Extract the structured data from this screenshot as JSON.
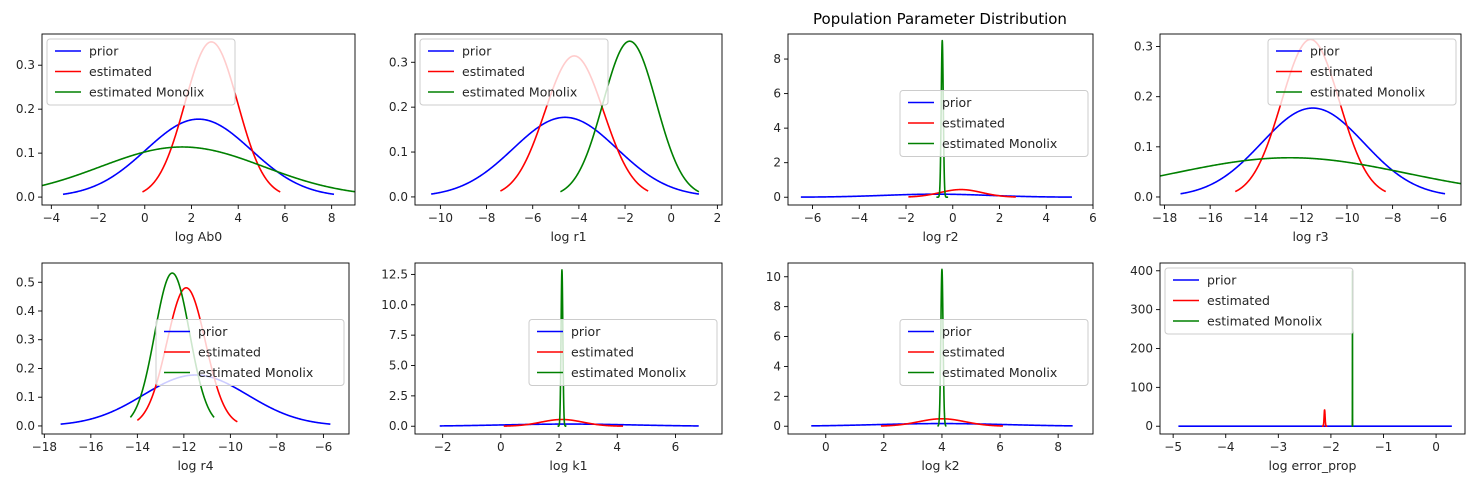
{
  "figure": {
    "title": "Population Parameter Distribution"
  },
  "colors": {
    "prior": "#0000ff",
    "estimated": "#ff0000",
    "monolix": "#008000"
  },
  "chart_data": [
    {
      "type": "line",
      "xlabel": "log Ab0",
      "xlim": [
        -4.4,
        9.0
      ],
      "ylim": [
        -0.018,
        0.371
      ],
      "xticks": [
        -4,
        -2,
        0,
        2,
        4,
        6,
        8
      ],
      "yticks": [
        0.0,
        0.1,
        0.2,
        0.3
      ],
      "ytick_labels": [
        "0.0",
        "0.1",
        "0.2",
        "0.3"
      ],
      "legend": "upper-left",
      "series": [
        {
          "name": "prior",
          "mu": 2.3,
          "sigma": 2.25,
          "x_range": [
            -3.5,
            8.1
          ]
        },
        {
          "name": "estimated",
          "mu": 2.85,
          "sigma": 1.13,
          "x_range": [
            -0.1,
            5.8
          ]
        },
        {
          "name": "estimated Monolix",
          "mu": 1.6,
          "sigma": 3.5,
          "x_range": [
            -4.4,
            9.0
          ]
        }
      ]
    },
    {
      "type": "line",
      "xlabel": "log r1",
      "xlim": [
        -11.1,
        2.2
      ],
      "ylim": [
        -0.018,
        0.363
      ],
      "xticks": [
        -10,
        -8,
        -6,
        -4,
        -2,
        0,
        2
      ],
      "yticks": [
        0.0,
        0.1,
        0.2,
        0.3
      ],
      "ytick_labels": [
        "0.0",
        "0.1",
        "0.2",
        "0.3"
      ],
      "legend": "upper-left",
      "series": [
        {
          "name": "prior",
          "mu": -4.6,
          "sigma": 2.25,
          "x_range": [
            -10.4,
            1.2
          ]
        },
        {
          "name": "estimated",
          "mu": -4.2,
          "sigma": 1.27,
          "x_range": [
            -7.4,
            -1.0
          ]
        },
        {
          "name": "estimated Monolix",
          "mu": -1.8,
          "sigma": 1.15,
          "x_range": [
            -4.8,
            1.2
          ]
        }
      ]
    },
    {
      "type": "line",
      "xlabel": "log r2",
      "xlim": [
        -7.05,
        6.0
      ],
      "ylim": [
        -0.45,
        9.45
      ],
      "xticks": [
        -6,
        -4,
        -2,
        0,
        2,
        4,
        6
      ],
      "yticks": [
        0,
        2,
        4,
        6,
        8
      ],
      "ytick_labels": [
        "0",
        "2",
        "4",
        "6",
        "8"
      ],
      "legend": "center-right",
      "series": [
        {
          "name": "prior",
          "mu": -0.7,
          "sigma": 2.25,
          "x_range": [
            -6.5,
            5.1
          ]
        },
        {
          "name": "estimated",
          "mu": 0.35,
          "sigma": 0.9,
          "x_range": [
            -1.9,
            2.7
          ]
        },
        {
          "name": "estimated Monolix",
          "mu": -0.45,
          "sigma": 0.044,
          "x_range": [
            -0.7,
            -0.2
          ]
        }
      ]
    },
    {
      "type": "line",
      "xlabel": "log r3",
      "xlim": [
        -18.2,
        -5.0
      ],
      "ylim": [
        -0.016,
        0.325
      ],
      "xticks": [
        -18,
        -16,
        -14,
        -12,
        -10,
        -8,
        -6
      ],
      "yticks": [
        0.0,
        0.1,
        0.2,
        0.3
      ],
      "ytick_labels": [
        "0.0",
        "0.1",
        "0.2",
        "0.3"
      ],
      "legend": "upper-right",
      "series": [
        {
          "name": "prior",
          "mu": -11.5,
          "sigma": 2.25,
          "x_range": [
            -17.3,
            -5.7
          ]
        },
        {
          "name": "estimated",
          "mu": -11.6,
          "sigma": 1.27,
          "x_range": [
            -14.9,
            -8.3
          ]
        },
        {
          "name": "estimated Monolix",
          "mu": -12.5,
          "sigma": 5.1,
          "x_range": [
            -18.2,
            -5.0
          ]
        }
      ]
    },
    {
      "type": "line",
      "xlabel": "log r4",
      "xlim": [
        -18.1,
        -4.9
      ],
      "ylim": [
        -0.028,
        0.567
      ],
      "xticks": [
        -18,
        -16,
        -14,
        -12,
        -10,
        -8,
        -6
      ],
      "yticks": [
        0.0,
        0.1,
        0.2,
        0.3,
        0.4,
        0.5
      ],
      "ytick_labels": [
        "0.0",
        "0.1",
        "0.2",
        "0.3",
        "0.4",
        "0.5"
      ],
      "legend": "center-right",
      "series": [
        {
          "name": "prior",
          "mu": -11.5,
          "sigma": 2.25,
          "x_range": [
            -17.3,
            -5.7
          ]
        },
        {
          "name": "estimated",
          "mu": -11.9,
          "sigma": 0.83,
          "x_range": [
            -14.0,
            -9.7
          ]
        },
        {
          "name": "estimated Monolix",
          "mu": -12.5,
          "sigma": 0.75,
          "x_range": [
            -14.3,
            -10.7
          ]
        }
      ]
    },
    {
      "type": "line",
      "xlabel": "log k1",
      "xlim": [
        -2.95,
        7.6
      ],
      "ylim": [
        -0.64,
        13.44
      ],
      "xticks": [
        -2,
        0,
        2,
        4,
        6
      ],
      "yticks": [
        0.0,
        2.5,
        5.0,
        7.5,
        10.0,
        12.5
      ],
      "ytick_labels": [
        "0.0",
        "2.5",
        "5.0",
        "7.5",
        "10.0",
        "12.5"
      ],
      "legend": "center-right",
      "series": [
        {
          "name": "prior",
          "mu": 2.3,
          "sigma": 2.25,
          "x_range": [
            -2.1,
            6.8
          ]
        },
        {
          "name": "estimated",
          "mu": 2.1,
          "sigma": 0.72,
          "x_range": [
            0.1,
            4.2
          ]
        },
        {
          "name": "estimated Monolix",
          "mu": 2.1,
          "sigma": 0.031,
          "x_range": [
            1.95,
            2.25
          ]
        }
      ]
    },
    {
      "type": "line",
      "xlabel": "log k2",
      "xlim": [
        -1.3,
        9.2
      ],
      "ylim": [
        -0.52,
        10.92
      ],
      "xticks": [
        0,
        2,
        4,
        6,
        8
      ],
      "yticks": [
        0,
        2,
        4,
        6,
        8,
        10
      ],
      "ytick_labels": [
        "0",
        "2",
        "4",
        "6",
        "8",
        "10"
      ],
      "legend": "center-right",
      "series": [
        {
          "name": "prior",
          "mu": 4.0,
          "sigma": 2.25,
          "x_range": [
            -0.5,
            8.5
          ]
        },
        {
          "name": "estimated",
          "mu": 4.0,
          "sigma": 0.8,
          "x_range": [
            1.9,
            6.1
          ]
        },
        {
          "name": "estimated Monolix",
          "mu": 4.0,
          "sigma": 0.038,
          "x_range": [
            3.85,
            4.15
          ]
        }
      ]
    },
    {
      "type": "line",
      "xlabel": "log error_prop",
      "xlim": [
        -5.25,
        0.55
      ],
      "ylim": [
        -20,
        420
      ],
      "xticks": [
        -5,
        -4,
        -3,
        -2,
        -1,
        0
      ],
      "yticks": [
        0,
        100,
        200,
        300,
        400
      ],
      "ytick_labels": [
        "0",
        "100",
        "200",
        "300",
        "400"
      ],
      "legend": "upper-left",
      "series": [
        {
          "name": "prior",
          "mu": -2.3,
          "sigma": 2.25,
          "x_range": [
            -4.9,
            0.3
          ]
        },
        {
          "name": "estimated",
          "mu": -2.12,
          "sigma": 0.0095,
          "x_range": [
            -2.17,
            -2.07
          ]
        },
        {
          "name": "estimated Monolix",
          "mu": -1.59,
          "sigma": 0.001,
          "x_range": [
            -1.6,
            -1.58
          ]
        }
      ]
    }
  ]
}
